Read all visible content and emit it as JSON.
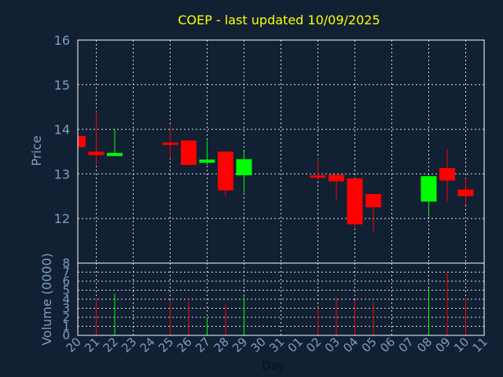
{
  "colors": {
    "background": "#112033",
    "up": "#00ff00",
    "down": "#ff0000",
    "title": "#ffff00",
    "axis_text": "#7f9fc0",
    "grid": "#ffffff"
  },
  "chart_data": [
    {
      "type": "candlestick",
      "title": "COEP - last updated 10/09/2025",
      "ylabel": "Price",
      "ylim": [
        11,
        16
      ],
      "yticks": [
        12,
        13,
        14,
        15,
        16
      ],
      "grid": true,
      "categories": [
        "20",
        "21",
        "22",
        "23",
        "24",
        "25",
        "26",
        "27",
        "28",
        "29",
        "30",
        "31",
        "01",
        "02",
        "03",
        "04",
        "05",
        "06",
        "07",
        "08",
        "09",
        "10",
        "11"
      ],
      "candles": [
        {
          "x": "20",
          "open": 13.85,
          "high": 13.85,
          "low": 13.6,
          "close": 13.6
        },
        {
          "x": "21",
          "open": 13.5,
          "high": 14.4,
          "low": 13.2,
          "close": 13.42
        },
        {
          "x": "22",
          "open": 13.4,
          "high": 14.0,
          "low": 13.4,
          "close": 13.47
        },
        {
          "x": "25",
          "open": 13.7,
          "high": 14.1,
          "low": 13.35,
          "close": 13.65
        },
        {
          "x": "26",
          "open": 13.75,
          "high": 13.75,
          "low": 13.2,
          "close": 13.2
        },
        {
          "x": "27",
          "open": 13.25,
          "high": 13.75,
          "low": 13.2,
          "close": 13.32
        },
        {
          "x": "28",
          "open": 13.5,
          "high": 13.5,
          "low": 12.5,
          "close": 12.63
        },
        {
          "x": "29",
          "open": 12.97,
          "high": 13.5,
          "low": 12.58,
          "close": 13.33
        },
        {
          "x": "02",
          "open": 12.96,
          "high": 13.35,
          "low": 12.85,
          "close": 12.92
        },
        {
          "x": "03",
          "open": 12.98,
          "high": 12.98,
          "low": 12.4,
          "close": 12.83
        },
        {
          "x": "04",
          "open": 12.9,
          "high": 12.9,
          "low": 11.8,
          "close": 11.87
        },
        {
          "x": "05",
          "open": 12.55,
          "high": 12.55,
          "low": 11.7,
          "close": 12.25
        },
        {
          "x": "08",
          "open": 12.38,
          "high": 12.95,
          "low": 12.05,
          "close": 12.95
        },
        {
          "x": "09",
          "open": 13.13,
          "high": 13.55,
          "low": 12.38,
          "close": 12.85
        },
        {
          "x": "10",
          "open": 12.65,
          "high": 12.9,
          "low": 12.3,
          "close": 12.5
        }
      ]
    },
    {
      "type": "bar",
      "xlabel": "Day",
      "ylabel": "Volume (0000)",
      "ylim": [
        0,
        8
      ],
      "yticks": [
        0,
        1,
        2,
        3,
        4,
        5,
        6,
        7,
        8
      ],
      "categories": [
        "20",
        "21",
        "22",
        "23",
        "24",
        "25",
        "26",
        "27",
        "28",
        "29",
        "30",
        "31",
        "01",
        "02",
        "03",
        "04",
        "05",
        "06",
        "07",
        "08",
        "09",
        "10",
        "11"
      ],
      "bars": [
        {
          "x": "21",
          "value": 4.1,
          "dir": "down"
        },
        {
          "x": "22",
          "value": 4.6,
          "dir": "up"
        },
        {
          "x": "25",
          "value": 3.9,
          "dir": "down"
        },
        {
          "x": "26",
          "value": 3.8,
          "dir": "down"
        },
        {
          "x": "27",
          "value": 2.0,
          "dir": "up"
        },
        {
          "x": "28",
          "value": 3.4,
          "dir": "down"
        },
        {
          "x": "29",
          "value": 4.3,
          "dir": "up"
        },
        {
          "x": "02",
          "value": 3.1,
          "dir": "down"
        },
        {
          "x": "03",
          "value": 4.2,
          "dir": "down"
        },
        {
          "x": "04",
          "value": 3.9,
          "dir": "down"
        },
        {
          "x": "05",
          "value": 3.6,
          "dir": "down"
        },
        {
          "x": "08",
          "value": 5.2,
          "dir": "up"
        },
        {
          "x": "09",
          "value": 7.1,
          "dir": "down"
        },
        {
          "x": "10",
          "value": 4.1,
          "dir": "down"
        }
      ]
    }
  ]
}
